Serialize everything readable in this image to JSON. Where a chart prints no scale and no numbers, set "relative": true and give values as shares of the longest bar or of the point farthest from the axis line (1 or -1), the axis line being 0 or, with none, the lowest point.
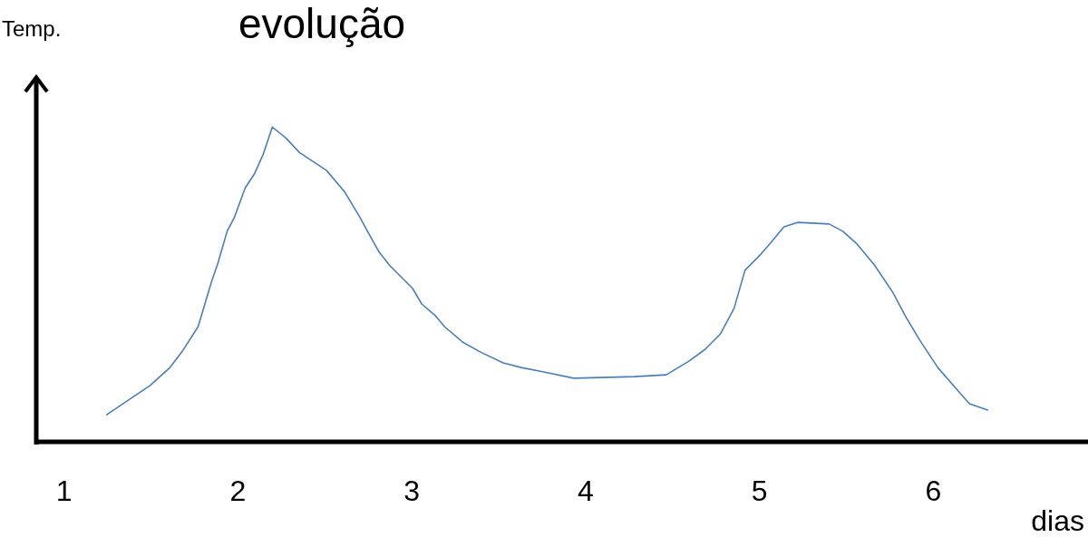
{
  "chart_data": {
    "type": "line",
    "title": "evolução",
    "xlabel": "dias",
    "ylabel": "Temp.",
    "relative": true,
    "xlim": [
      0.84,
      6.89
    ],
    "xticks": [
      1,
      2,
      3,
      4,
      5,
      6
    ],
    "grid": false,
    "marker": "none",
    "line_style": "solid",
    "series": [
      {
        "color": "#4a7ebb",
        "x": [
          1.245,
          1.495,
          1.609,
          1.677,
          1.771,
          1.849,
          1.885,
          1.938,
          1.979,
          2.042,
          2.094,
          2.146,
          2.198,
          2.276,
          2.354,
          2.51,
          2.615,
          2.703,
          2.745,
          2.813,
          2.875,
          3.005,
          3.057,
          3.135,
          3.188,
          3.292,
          3.396,
          3.526,
          3.63,
          3.76,
          3.932,
          4.281,
          4.464,
          4.594,
          4.688,
          4.776,
          4.854,
          4.917,
          5.01,
          5.063,
          5.141,
          5.219,
          5.401,
          5.479,
          5.557,
          5.661,
          5.766,
          5.844,
          5.922,
          6.026,
          6.13,
          6.208,
          6.313
        ],
        "values": [
          0.086,
          0.179,
          0.236,
          0.285,
          0.366,
          0.51,
          0.568,
          0.669,
          0.712,
          0.807,
          0.85,
          0.914,
          1.0,
          0.965,
          0.919,
          0.862,
          0.793,
          0.712,
          0.669,
          0.602,
          0.559,
          0.487,
          0.438,
          0.401,
          0.366,
          0.317,
          0.285,
          0.251,
          0.236,
          0.222,
          0.202,
          0.207,
          0.213,
          0.256,
          0.294,
          0.343,
          0.424,
          0.545,
          0.597,
          0.631,
          0.683,
          0.697,
          0.692,
          0.669,
          0.631,
          0.562,
          0.476,
          0.395,
          0.323,
          0.236,
          0.17,
          0.121,
          0.101
        ]
      }
    ]
  }
}
